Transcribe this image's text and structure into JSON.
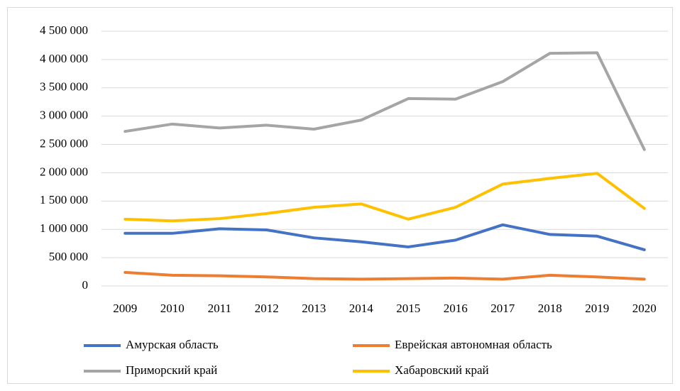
{
  "chart_data": {
    "type": "line",
    "categories": [
      "2009",
      "2010",
      "2011",
      "2012",
      "2013",
      "2014",
      "2015",
      "2016",
      "2017",
      "2018",
      "2019",
      "2020"
    ],
    "series": [
      {
        "name": "Амурская область",
        "color": "#4472c4",
        "values": [
          930000,
          930000,
          1010000,
          990000,
          850000,
          780000,
          690000,
          810000,
          1080000,
          910000,
          880000,
          640000
        ]
      },
      {
        "name": "Еврейская автономная область",
        "color": "#ed7d31",
        "values": [
          240000,
          190000,
          180000,
          160000,
          130000,
          120000,
          130000,
          140000,
          120000,
          190000,
          160000,
          120000
        ]
      },
      {
        "name": "Приморский край",
        "color": "#a5a5a5",
        "values": [
          2730000,
          2860000,
          2790000,
          2840000,
          2770000,
          2930000,
          3310000,
          3300000,
          3610000,
          4110000,
          4120000,
          2410000
        ]
      },
      {
        "name": "Хабаровский край",
        "color": "#ffc000",
        "values": [
          1180000,
          1150000,
          1190000,
          1280000,
          1390000,
          1450000,
          1180000,
          1390000,
          1800000,
          1900000,
          1990000,
          1370000
        ]
      }
    ],
    "ylim": [
      0,
      4500000
    ],
    "yticks": [
      0,
      {
        "value": 500000,
        "label": "500 000"
      },
      {
        "value": 1000000,
        "label": "1 000 000"
      },
      {
        "value": 1500000,
        "label": "1 500 000"
      },
      {
        "value": 2000000,
        "label": "2 000 000"
      },
      {
        "value": 2500000,
        "label": "2 500 000"
      },
      {
        "value": 3000000,
        "label": "3 000 000"
      },
      {
        "value": 3500000,
        "label": "3 500 000"
      },
      {
        "value": 4000000,
        "label": "4 000 000"
      },
      {
        "value": 4500000,
        "label": "4 500 000"
      }
    ],
    "grid": true,
    "legend": "bottom"
  }
}
